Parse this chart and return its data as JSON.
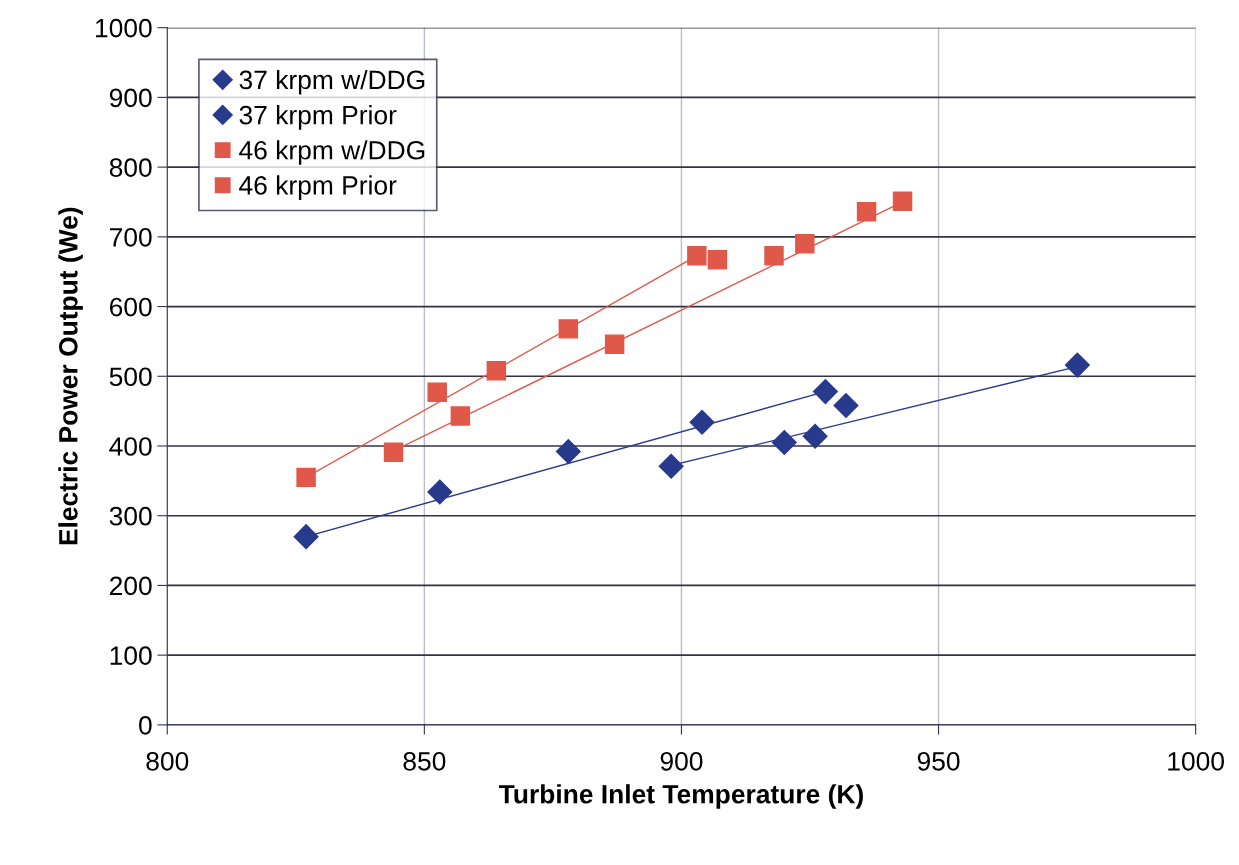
{
  "chart_data": {
    "type": "scatter",
    "xlabel": "Turbine Inlet Temperature (K)",
    "ylabel": "Electric Power Output (We)",
    "xlim": [
      800,
      1000
    ],
    "xticks": [
      800,
      850,
      900,
      950,
      1000
    ],
    "ylim": [
      0,
      1000
    ],
    "yticks": [
      0,
      100,
      200,
      300,
      400,
      500,
      600,
      700,
      800,
      900,
      1000
    ],
    "grid": true,
    "legend": "top left",
    "series": [
      {
        "name": "37 krpm w/DDG",
        "color": "#283a8c",
        "marker": "diamond",
        "x": [
          827,
          853,
          878,
          904,
          928
        ],
        "values": [
          270,
          334,
          392,
          434,
          478
        ]
      },
      {
        "name": "37 krpm Prior",
        "color": "#283a8c",
        "marker": "diamond",
        "x": [
          898,
          920,
          926,
          932,
          977
        ],
        "values": [
          371,
          405,
          414,
          458,
          516
        ]
      },
      {
        "name": "46 krpm w/DDG",
        "color": "#e0584a",
        "marker": "square",
        "x": [
          827,
          852.5,
          878,
          903
        ],
        "values": [
          355,
          477,
          568,
          673
        ]
      },
      {
        "name": "46 krpm Prior",
        "color": "#e0584a",
        "marker": "square",
        "x": [
          844,
          857,
          864,
          887,
          907,
          918,
          924,
          936,
          943
        ],
        "values": [
          391,
          443,
          508,
          546,
          667,
          673,
          690,
          736,
          751
        ]
      },
      {
        "type": "line",
        "color": "#283a8c",
        "marker": "none",
        "x": [
          827,
          928
        ],
        "values": [
          270,
          478
        ]
      },
      {
        "type": "line",
        "color": "#283a8c",
        "marker": "none",
        "x": [
          898,
          977
        ],
        "values": [
          372,
          514
        ]
      },
      {
        "type": "line",
        "color": "#e0584a",
        "marker": "none",
        "x": [
          827,
          903
        ],
        "values": [
          355,
          673
        ]
      },
      {
        "type": "line",
        "color": "#e0584a",
        "marker": "none",
        "x": [
          844,
          943
        ],
        "values": [
          393,
          750
        ]
      }
    ]
  }
}
